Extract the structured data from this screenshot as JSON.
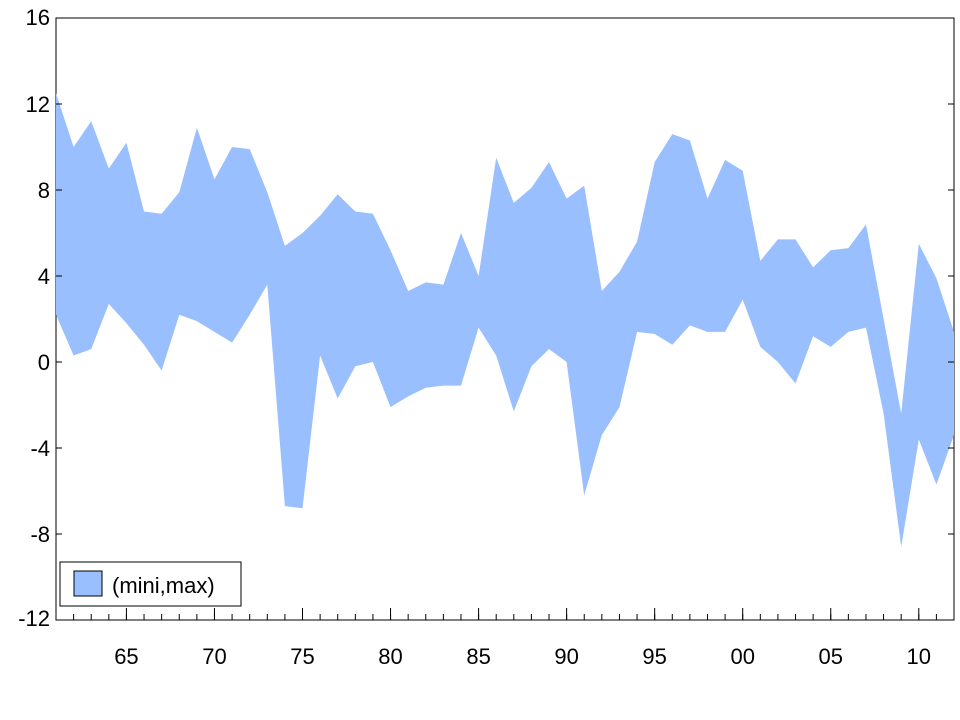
{
  "chart_data": {
    "type": "area",
    "series": [
      {
        "name": "(mini,max)",
        "x": [
          1961,
          1962,
          1963,
          1964,
          1965,
          1966,
          1967,
          1968,
          1969,
          1970,
          1971,
          1972,
          1973,
          1974,
          1975,
          1976,
          1977,
          1978,
          1979,
          1980,
          1981,
          1982,
          1983,
          1984,
          1985,
          1986,
          1987,
          1988,
          1989,
          1990,
          1991,
          1992,
          1993,
          1994,
          1995,
          1996,
          1997,
          1998,
          1999,
          2000,
          2001,
          2002,
          2003,
          2004,
          2005,
          2006,
          2007,
          2008,
          2009,
          2010,
          2011,
          2012
        ],
        "min": [
          2.2,
          0.3,
          0.6,
          2.7,
          1.8,
          0.8,
          -0.4,
          2.2,
          1.9,
          1.4,
          0.9,
          2.2,
          3.6,
          -6.7,
          -6.8,
          0.3,
          -1.7,
          -0.2,
          0.0,
          -2.1,
          -1.6,
          -1.2,
          -1.1,
          -1.1,
          1.6,
          0.3,
          -2.3,
          -0.2,
          0.6,
          0.0,
          -6.2,
          -3.4,
          -2.1,
          1.4,
          1.3,
          0.8,
          1.7,
          1.4,
          1.4,
          2.9,
          0.7,
          0.0,
          -1.0,
          1.2,
          0.7,
          1.4,
          1.6,
          -2.4,
          -8.6,
          -3.6,
          -5.7,
          -3.4
        ],
        "max": [
          12.5,
          10.0,
          11.2,
          9.0,
          10.2,
          7.0,
          6.9,
          7.9,
          10.9,
          8.5,
          10.0,
          9.9,
          7.9,
          5.4,
          6.0,
          6.8,
          7.8,
          7.0,
          6.9,
          5.2,
          3.3,
          3.7,
          3.6,
          6.0,
          4.0,
          9.5,
          7.4,
          8.1,
          9.3,
          7.6,
          8.2,
          3.3,
          4.2,
          5.6,
          9.3,
          10.6,
          10.3,
          7.6,
          9.4,
          8.9,
          4.7,
          5.7,
          5.7,
          4.4,
          5.2,
          5.3,
          6.4,
          2.0,
          -2.4,
          5.5,
          3.9,
          1.4
        ]
      }
    ],
    "xlim": [
      1961,
      2012
    ],
    "ylim": [
      -12,
      16
    ],
    "x_ticks": [
      1965,
      1970,
      1975,
      1980,
      1985,
      1990,
      1995,
      2000,
      2005,
      2010
    ],
    "x_tick_labels": [
      "65",
      "70",
      "75",
      "80",
      "85",
      "90",
      "95",
      "00",
      "05",
      "10"
    ],
    "y_ticks": [
      16,
      12,
      8,
      4,
      0,
      -4,
      -8,
      -12
    ],
    "y_tick_labels": [
      "16",
      "12",
      "8",
      "4",
      "0",
      "-4",
      "-8",
      "-12"
    ],
    "grid": false,
    "legend_placement": "bottom-left",
    "colors": {
      "band": "#99BFFF",
      "axis": "#000000",
      "background": "#FFFFFF"
    }
  }
}
